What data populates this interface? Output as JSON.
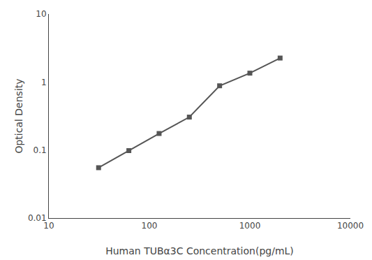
{
  "chart_data": {
    "type": "line",
    "x": [
      31.25,
      62.5,
      125,
      250,
      500,
      1000,
      2000
    ],
    "values": [
      0.055,
      0.098,
      0.175,
      0.305,
      0.88,
      1.35,
      2.25
    ],
    "xlabel": "Human TUBα3C Concentration(pg/mL)",
    "ylabel": "Optical Density",
    "xlim": [
      10,
      10000
    ],
    "ylim": [
      0.01,
      10
    ],
    "xticks": [
      10,
      100,
      1000,
      10000
    ],
    "yticks": [
      0.01,
      0.1,
      1,
      10
    ],
    "log": true,
    "grid": false,
    "color": "#555555",
    "marker": "square",
    "line_style": "solid"
  }
}
